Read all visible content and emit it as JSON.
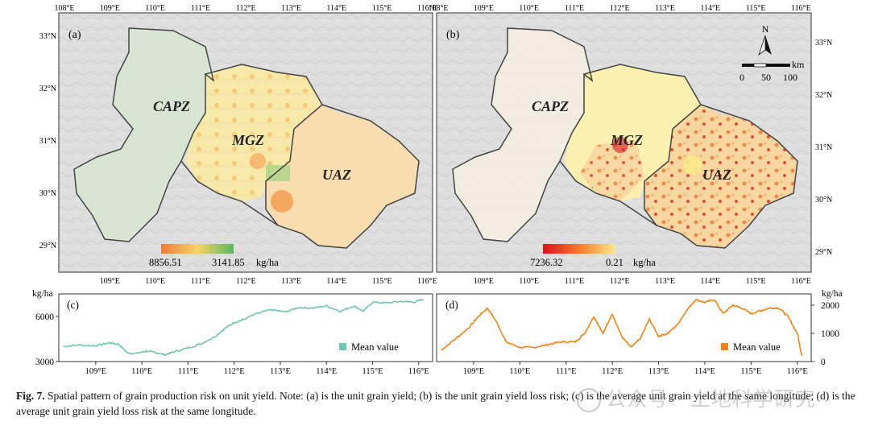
{
  "caption": {
    "label": "Fig. 7.",
    "text": "Spatial pattern of grain production risk on unit yield. Note: (a) is the unit grain yield; (b) is the unit grain yield loss risk; (c) is the average unit grain yield at the same longitude; (d) is the average unit grain yield loss risk at the same longitude."
  },
  "watermark": "公众号 · 土地科学研究",
  "map_a": {
    "panel_label": "(a)",
    "zones": [
      "CAPZ",
      "MGZ",
      "UAZ"
    ],
    "legend_max": "8856.51",
    "legend_min": "3141.85",
    "legend_unit": "kg/ha",
    "legend_colors": [
      "#f07a3a",
      "#f8d466",
      "#58b95a"
    ]
  },
  "map_b": {
    "panel_label": "(b)",
    "zones": [
      "CAPZ",
      "MGZ",
      "UAZ"
    ],
    "legend_max": "7236.32",
    "legend_min": "0.21",
    "legend_unit": "kg/ha",
    "legend_colors": [
      "#d8141c",
      "#f57a2a",
      "#fbe98a"
    ],
    "north_label": "N",
    "scale_unit": "km",
    "scale_ticks": [
      "0",
      "50",
      "100"
    ]
  },
  "lon_labels": [
    "108°E",
    "109°E",
    "110°E",
    "111°E",
    "112°E",
    "113°E",
    "114°E",
    "115°E",
    "116°E"
  ],
  "lat_labels": [
    "33°N",
    "32°N",
    "31°N",
    "30°N",
    "29°N"
  ],
  "chart_data": [
    {
      "type": "line",
      "panel_label": "(c)",
      "ylabel": "kg/ha",
      "color": "#6fc7b2",
      "legend": "Mean value",
      "ylim": [
        3000,
        7500
      ],
      "yticks": [
        3000,
        6000
      ],
      "xlim": [
        108.2,
        116.3
      ],
      "xticks": [
        "109°E",
        "110°E",
        "111°E",
        "112°E",
        "113°E",
        "114°E",
        "115°E",
        "116°E"
      ],
      "x": [
        108.3,
        108.6,
        109.0,
        109.3,
        109.5,
        109.7,
        109.9,
        110.1,
        110.3,
        110.5,
        110.7,
        111.0,
        111.3,
        111.6,
        111.8,
        112.0,
        112.2,
        112.5,
        112.8,
        113.1,
        113.4,
        113.7,
        114.0,
        114.3,
        114.6,
        114.8,
        115.0,
        115.3,
        115.6,
        115.9,
        116.1
      ],
      "y": [
        4000,
        4100,
        4050,
        4250,
        4150,
        3550,
        3550,
        3700,
        3600,
        3450,
        3650,
        3900,
        4200,
        4700,
        5200,
        5600,
        5800,
        6200,
        6450,
        6300,
        6600,
        6550,
        6700,
        6350,
        6700,
        6350,
        6950,
        6900,
        7000,
        6950,
        7150
      ]
    },
    {
      "type": "line",
      "panel_label": "(d)",
      "ylabel": "kg/ha",
      "color": "#f5820f",
      "legend": "Mean value",
      "ylim": [
        0,
        2400
      ],
      "yticks": [
        0,
        1000,
        2000
      ],
      "xlim": [
        108.2,
        116.3
      ],
      "xticks": [
        "109°E",
        "110°E",
        "111°E",
        "112°E",
        "113°E",
        "114°E",
        "115°E",
        "116°E"
      ],
      "x": [
        108.3,
        108.6,
        108.9,
        109.1,
        109.3,
        109.5,
        109.7,
        110.0,
        110.3,
        110.6,
        110.9,
        111.2,
        111.4,
        111.6,
        111.8,
        112.0,
        112.2,
        112.4,
        112.6,
        112.8,
        113.0,
        113.2,
        113.4,
        113.6,
        113.8,
        114.0,
        114.2,
        114.4,
        114.6,
        114.8,
        115.0,
        115.2,
        115.4,
        115.6,
        115.8,
        116.0,
        116.1
      ],
      "y": [
        400,
        800,
        1200,
        1600,
        1900,
        1400,
        700,
        500,
        500,
        600,
        700,
        700,
        1000,
        1600,
        1000,
        1700,
        900,
        500,
        800,
        1500,
        900,
        1000,
        1300,
        1800,
        2200,
        2100,
        2200,
        1700,
        2000,
        1900,
        1700,
        1800,
        1900,
        1900,
        1600,
        1000,
        200
      ]
    }
  ]
}
